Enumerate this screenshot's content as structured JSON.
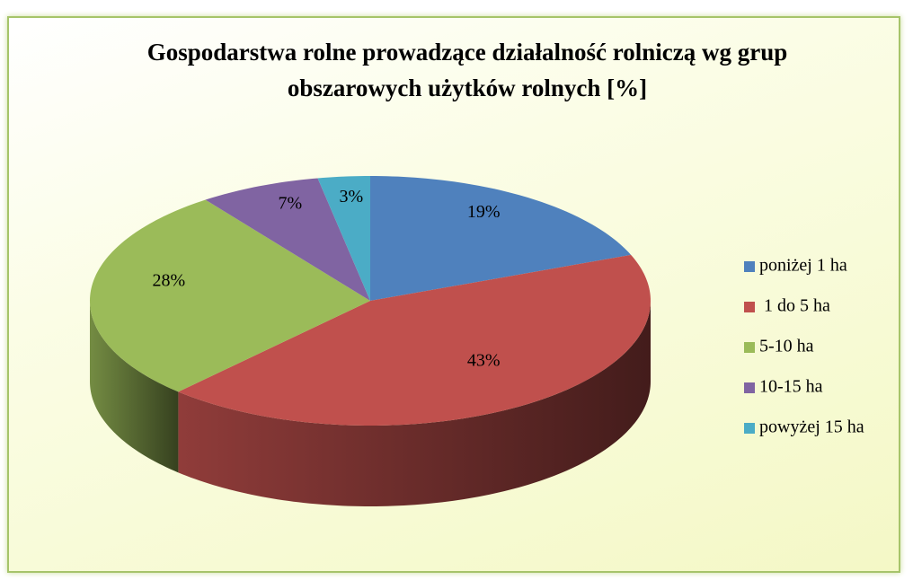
{
  "chart_data": {
    "type": "pie",
    "title": "Gospodarstwa rolne prowadzące działalność rolniczą wg grup obszarowych użytków rolnych [%]",
    "categories": [
      "poniżej 1 ha",
      " 1 do 5 ha",
      "5-10 ha",
      "10-15 ha",
      "powyżej 15 ha"
    ],
    "values": [
      19,
      43,
      28,
      7,
      3
    ],
    "value_labels": [
      "19%",
      "43%",
      "28%",
      "7%",
      "3%"
    ],
    "colors": [
      "#4f81bd",
      "#c0504d",
      "#9bbb59",
      "#8064a2",
      "#4bacc6"
    ],
    "legend": "right"
  }
}
